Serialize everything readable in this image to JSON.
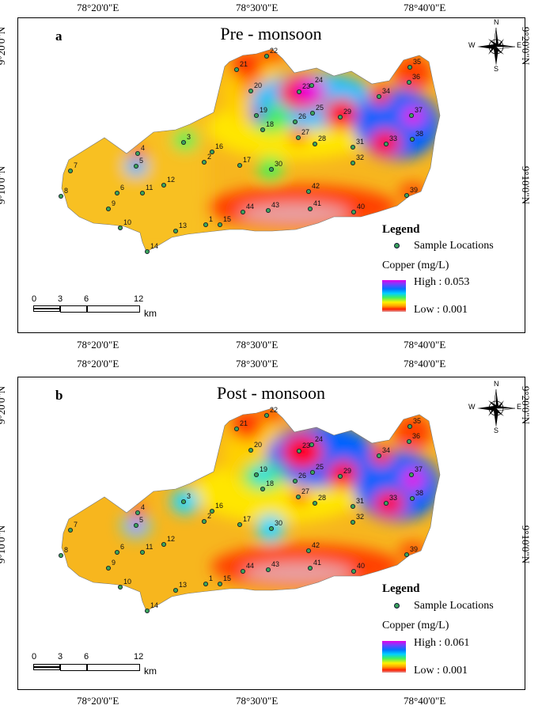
{
  "coords": {
    "top": [
      "78°20'0\"E",
      "78°30'0\"E",
      "78°40'0\"E"
    ],
    "bottom": [
      "78°20'0\"E",
      "78°30'0\"E",
      "78°40'0\"E"
    ],
    "left": [
      "9°20'0\"N",
      "9°10'0\"N"
    ],
    "right": [
      "9°20'0\"N",
      "9°10'0\"N"
    ]
  },
  "panels": [
    {
      "letter": "a",
      "title": "Pre - monsoon",
      "legend": {
        "title": "Legend",
        "sample_label": "Sample Locations",
        "variable": "Copper (mg/L)",
        "high": "High : 0.053",
        "low": "Low : 0.001"
      }
    },
    {
      "letter": "b",
      "title": "Post - monsoon",
      "legend": {
        "title": "Legend",
        "sample_label": "Sample Locations",
        "variable": "Copper (mg/L)",
        "high": "High : 0.061",
        "low": "Low : 0.001"
      }
    }
  ],
  "scale": {
    "ticks": [
      "0",
      "3",
      "6",
      "12"
    ],
    "unit": "km"
  },
  "compass": {
    "n": "N",
    "s": "S",
    "e": "E",
    "w": "W"
  },
  "sample_sites": [
    "1",
    "2",
    "3",
    "4",
    "5",
    "6",
    "7",
    "8",
    "9",
    "10",
    "11",
    "12",
    "13",
    "14",
    "15",
    "16",
    "17",
    "18",
    "19",
    "20",
    "21",
    "22",
    "23",
    "24",
    "25",
    "26",
    "27",
    "28",
    "29",
    "30",
    "31",
    "32",
    "33",
    "34",
    "35",
    "36",
    "37",
    "38",
    "39",
    "40",
    "41",
    "42",
    "43",
    "44"
  ],
  "colors": {
    "low": "#e0a0a0",
    "orange": "#ff8a00",
    "yellow": "#ffe600",
    "green": "#48ef52",
    "cyan": "#22d8ff",
    "blue": "#0062ff",
    "high": "#e600e6",
    "site_dot": "#3aa35b"
  }
}
